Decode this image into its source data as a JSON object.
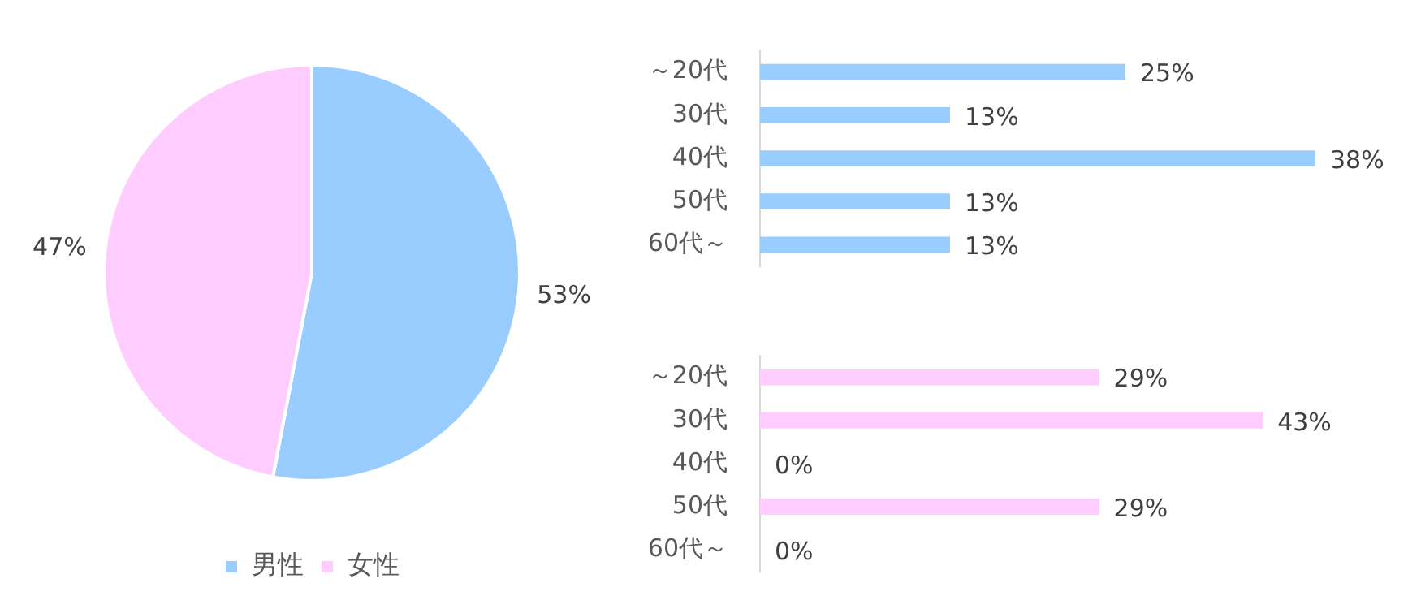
{
  "chart_data": [
    {
      "type": "pie",
      "categories": [
        "男性",
        "女性"
      ],
      "values": [
        53,
        47
      ],
      "colors": [
        "#99ccff",
        "#ffccff"
      ],
      "value_labels": [
        "53%",
        "47%"
      ],
      "legend": "bottom"
    },
    {
      "type": "bar",
      "orientation": "horizontal",
      "categories": [
        "～20代",
        "30代",
        "40代",
        "50代",
        "60代～"
      ],
      "values": [
        25,
        13,
        38,
        13,
        13
      ],
      "color": "#99ccff",
      "value_labels": [
        "25%",
        "13%",
        "38%",
        "13%",
        "13%"
      ],
      "tick_labels": "y",
      "legend": false
    },
    {
      "type": "bar",
      "orientation": "horizontal",
      "categories": [
        "～20代",
        "30代",
        "40代",
        "50代",
        "60代～"
      ],
      "values": [
        29,
        43,
        0,
        29,
        0
      ],
      "color": "#ffccff",
      "value_labels": [
        "29%",
        "43%",
        "0%",
        "29%",
        "0%"
      ],
      "tick_labels": "y",
      "legend": false
    }
  ]
}
